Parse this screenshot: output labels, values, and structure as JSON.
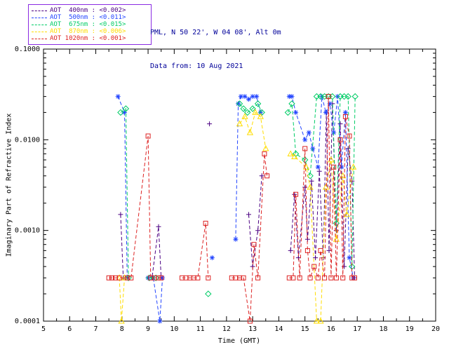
{
  "header": {
    "site": "PML, N 50 22', W 04 08', Alt 0m",
    "date": "Data from: 10 Aug 2021",
    "color": "#000099"
  },
  "legend": {
    "border_color": "#8a2be2",
    "items": [
      {
        "label": "AOT  400nm : <0.002>",
        "color": "#4b0082",
        "marker": "plus"
      },
      {
        "label": "AOT  500nm : <0.011>",
        "color": "#2244ff",
        "marker": "asterisk"
      },
      {
        "label": "AOT  675nm : <0.015>",
        "color": "#00cc66",
        "marker": "diamond"
      },
      {
        "label": "AOT  870nm : <0.006>",
        "color": "#ffdd00",
        "marker": "triangle"
      },
      {
        "label": "AOT 1020nm : <0.001>",
        "color": "#dd2222",
        "marker": "square"
      }
    ]
  },
  "chart_data": {
    "type": "line",
    "title": "",
    "xlabel": "Time (GMT)",
    "ylabel": "Imaginary Part of Refractive Index",
    "xlim": [
      5,
      20
    ],
    "ylim": [
      0.0001,
      0.1
    ],
    "yscale": "log",
    "grid": false,
    "legend_position": "top-left",
    "x_ticks": [
      5,
      6,
      7,
      8,
      9,
      10,
      11,
      12,
      13,
      14,
      15,
      16,
      17,
      18,
      19,
      20
    ],
    "y_ticks": [
      0.0001,
      0.001,
      0.01,
      0.1
    ],
    "y_tick_labels": [
      "0.0001",
      "0.0010",
      "0.0100",
      "0.1000"
    ],
    "series": [
      {
        "name": "AOT 400nm",
        "wavelength": "400nm",
        "color": "#4b0082",
        "marker": "plus",
        "points": [
          [
            7.95,
            0.0015
          ],
          [
            8.05,
            0.0003
          ],
          [
            9.0,
            0.0003
          ],
          [
            9.15,
            0.0003
          ],
          [
            9.4,
            0.0011
          ],
          [
            9.5,
            0.0003
          ],
          [
            11.35,
            0.015
          ],
          [
            12.85,
            0.0015
          ],
          [
            13.0,
            0.0004
          ],
          [
            13.2,
            0.001
          ],
          [
            13.35,
            0.004
          ],
          [
            14.45,
            0.0006
          ],
          [
            14.6,
            0.0025
          ],
          [
            14.75,
            0.0005
          ],
          [
            15.0,
            0.003
          ],
          [
            15.1,
            0.0008
          ],
          [
            15.25,
            0.0035
          ],
          [
            15.4,
            0.0005
          ],
          [
            15.55,
            0.0045
          ],
          [
            15.7,
            0.0005
          ],
          [
            15.82,
            0.02
          ],
          [
            15.92,
            0.0006
          ],
          [
            16.05,
            0.025
          ],
          [
            16.2,
            0.001
          ],
          [
            16.35,
            0.015
          ],
          [
            16.5,
            0.0004
          ],
          [
            16.65,
            0.008
          ],
          [
            16.8,
            0.0035
          ],
          [
            16.9,
            0.0003
          ]
        ]
      },
      {
        "name": "AOT 500nm",
        "wavelength": "500nm",
        "color": "#2244ff",
        "marker": "asterisk",
        "points": [
          [
            7.85,
            0.03
          ],
          [
            8.1,
            0.02
          ],
          [
            8.2,
            0.0003
          ],
          [
            9.0,
            0.0003
          ],
          [
            9.2,
            0.0003
          ],
          [
            9.45,
            0.0001
          ],
          [
            9.55,
            0.0003
          ],
          [
            11.45,
            0.0005
          ],
          [
            12.35,
            0.0008
          ],
          [
            12.45,
            0.025
          ],
          [
            12.55,
            0.03
          ],
          [
            12.7,
            0.03
          ],
          [
            12.85,
            0.028
          ],
          [
            13.0,
            0.03
          ],
          [
            13.15,
            0.03
          ],
          [
            13.3,
            0.02
          ],
          [
            14.4,
            0.03
          ],
          [
            14.5,
            0.03
          ],
          [
            14.65,
            0.02
          ],
          [
            15.0,
            0.01
          ],
          [
            15.15,
            0.012
          ],
          [
            15.3,
            0.008
          ],
          [
            15.5,
            0.005
          ],
          [
            15.65,
            0.03
          ],
          [
            15.8,
            0.02
          ],
          [
            15.95,
            0.025
          ],
          [
            16.1,
            0.012
          ],
          [
            16.25,
            0.03
          ],
          [
            16.4,
            0.005
          ],
          [
            16.55,
            0.02
          ],
          [
            16.7,
            0.0005
          ],
          [
            16.85,
            0.0003
          ]
        ]
      },
      {
        "name": "AOT 675nm",
        "wavelength": "675nm",
        "color": "#00cc66",
        "marker": "diamond",
        "points": [
          [
            7.95,
            0.02
          ],
          [
            8.15,
            0.022
          ],
          [
            8.25,
            0.0003
          ],
          [
            9.05,
            0.0003
          ],
          [
            9.3,
            0.0003
          ],
          [
            11.3,
            0.0002
          ],
          [
            12.5,
            0.025
          ],
          [
            12.65,
            0.022
          ],
          [
            12.8,
            0.02
          ],
          [
            13.0,
            0.022
          ],
          [
            13.2,
            0.025
          ],
          [
            13.35,
            0.02
          ],
          [
            14.35,
            0.02
          ],
          [
            14.5,
            0.025
          ],
          [
            14.65,
            0.007
          ],
          [
            15.0,
            0.006
          ],
          [
            15.2,
            0.004
          ],
          [
            15.45,
            0.03
          ],
          [
            15.6,
            0.03
          ],
          [
            15.75,
            0.03
          ],
          [
            15.9,
            0.03
          ],
          [
            16.05,
            0.03
          ],
          [
            16.2,
            0.0012
          ],
          [
            16.35,
            0.03
          ],
          [
            16.5,
            0.03
          ],
          [
            16.65,
            0.03
          ],
          [
            16.8,
            0.0004
          ],
          [
            16.92,
            0.03
          ]
        ]
      },
      {
        "name": "AOT 870nm",
        "wavelength": "870nm",
        "color": "#ffdd00",
        "marker": "triangle",
        "points": [
          [
            7.9,
            0.0003
          ],
          [
            7.98,
            0.0001
          ],
          [
            8.1,
            0.0003
          ],
          [
            12.5,
            0.015
          ],
          [
            12.7,
            0.018
          ],
          [
            12.9,
            0.012
          ],
          [
            13.1,
            0.02
          ],
          [
            13.3,
            0.018
          ],
          [
            13.5,
            0.008
          ],
          [
            14.45,
            0.007
          ],
          [
            14.6,
            0.0065
          ],
          [
            15.05,
            0.005
          ],
          [
            15.2,
            0.003
          ],
          [
            15.45,
            0.0001
          ],
          [
            15.6,
            0.0001
          ],
          [
            15.8,
            0.003
          ],
          [
            16.0,
            0.006
          ],
          [
            16.2,
            0.0008
          ],
          [
            16.45,
            0.004
          ],
          [
            16.6,
            0.0015
          ],
          [
            16.85,
            0.005
          ]
        ]
      },
      {
        "name": "AOT 1020nm",
        "wavelength": "1020nm",
        "color": "#dd2222",
        "marker": "square",
        "points": [
          [
            7.5,
            0.0003
          ],
          [
            7.62,
            0.0003
          ],
          [
            7.75,
            0.0003
          ],
          [
            7.9,
            0.0003
          ],
          [
            8.2,
            0.0003
          ],
          [
            8.35,
            0.0003
          ],
          [
            9.0,
            0.011
          ],
          [
            9.1,
            0.0003
          ],
          [
            9.25,
            0.0003
          ],
          [
            9.4,
            0.0003
          ],
          [
            9.5,
            0.0003
          ],
          [
            10.3,
            0.0003
          ],
          [
            10.45,
            0.0003
          ],
          [
            10.6,
            0.0003
          ],
          [
            10.75,
            0.0003
          ],
          [
            10.9,
            0.0003
          ],
          [
            11.2,
            0.0012
          ],
          [
            11.3,
            0.0003
          ],
          [
            12.2,
            0.0003
          ],
          [
            12.35,
            0.0003
          ],
          [
            12.5,
            0.0003
          ],
          [
            12.65,
            0.0003
          ],
          [
            12.9,
            0.0001
          ],
          [
            13.05,
            0.0007
          ],
          [
            13.2,
            0.0003
          ],
          [
            13.45,
            0.007
          ],
          [
            13.55,
            0.004
          ],
          [
            14.4,
            0.0003
          ],
          [
            14.55,
            0.0003
          ],
          [
            14.65,
            0.0025
          ],
          [
            14.8,
            0.0003
          ],
          [
            15.0,
            0.008
          ],
          [
            15.1,
            0.0006
          ],
          [
            15.2,
            0.0003
          ],
          [
            15.35,
            0.0004
          ],
          [
            15.5,
            0.0003
          ],
          [
            15.6,
            0.0006
          ],
          [
            15.75,
            0.0003
          ],
          [
            15.9,
            0.03
          ],
          [
            16.0,
            0.0003
          ],
          [
            16.1,
            0.005
          ],
          [
            16.2,
            0.0003
          ],
          [
            16.35,
            0.01
          ],
          [
            16.45,
            0.0003
          ],
          [
            16.55,
            0.018
          ],
          [
            16.7,
            0.011
          ],
          [
            16.8,
            0.0003
          ],
          [
            16.9,
            0.0003
          ]
        ]
      }
    ]
  }
}
